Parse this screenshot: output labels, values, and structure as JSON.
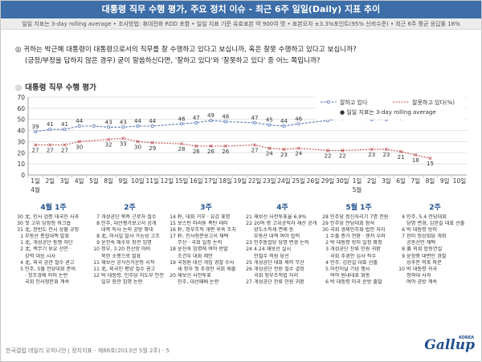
{
  "header": {
    "title": "대통령 직무 수행 평가, 주요 정치 이슈 - 최근 6주 일일(Daily) 지표 추이",
    "subtitle": "일일 지표는 3-day rolling average  •  조사방법: 휴대전화 RDD 포함  •  일일 지표 기준 유효표본 약 900여 명  •  표본오차 ±3.3%포인트(95% 신뢰수준)  •  최근 6주 평균 응답률 18%"
  },
  "question": {
    "line1": "◎ 귀하는 박근혜 대통령이 대통령으로서의 직무를 잘 수행하고 있다고 보십니까, 혹은 잘못 수행하고 있다고 보십니까?",
    "line2": "(긍정/부정을 답하지 않은 경우) 굳이 말씀하신다면, '잘하고 있다'와 '잘못하고 있다' 중 어느 쪽입니까?"
  },
  "section_title": "대통령 직무 수행 평가",
  "chart_data": {
    "type": "line",
    "ylim": [
      0,
      70
    ],
    "yticks": [
      0,
      10,
      20,
      30,
      40,
      50,
      60,
      70
    ],
    "x": [
      "1일",
      "2일",
      "3일",
      "4일",
      "5일",
      "8일",
      "9일",
      "10일",
      "11일",
      "12일",
      "15일",
      "16일",
      "17일",
      "18일",
      "19일",
      "22일",
      "23일",
      "24일",
      "25일",
      "26일",
      "29일",
      "30일",
      "1일",
      "2일",
      "3일",
      "6일",
      "7일",
      "8일",
      "9일",
      "10일"
    ],
    "months": [
      {
        "label": "4월",
        "index": 0
      },
      {
        "label": "5월",
        "index": 22
      }
    ],
    "series": [
      {
        "name": "잘하고 있다",
        "color": "#5b7bb8",
        "values": [
          39,
          41,
          41,
          44,
          44,
          43,
          43,
          44,
          44,
          null,
          46,
          47,
          49,
          48,
          null,
          47,
          45,
          44,
          46,
          null,
          49,
          51,
          null,
          50,
          50,
          51,
          52,
          55,
          58,
          null
        ]
      },
      {
        "name": "잘못하고 있다(%)",
        "color": "#c0504d",
        "values": [
          27,
          27,
          27,
          30,
          null,
          32,
          33,
          30,
          29,
          null,
          28,
          26,
          26,
          26,
          null,
          27,
          24,
          23,
          24,
          null,
          22,
          22,
          null,
          23,
          23,
          21,
          18,
          15,
          null,
          null
        ]
      }
    ],
    "data_labels": {
      "approve": [
        "39",
        "41",
        "41",
        "44",
        "",
        "43",
        "43",
        "44",
        "44",
        "",
        "46",
        "47",
        "49",
        "48",
        "",
        "47",
        "45",
        "44",
        "46",
        "",
        "49",
        "51",
        "",
        "50",
        "50",
        "51",
        "52",
        "55",
        "58",
        ""
      ],
      "disapprove": [
        "27",
        "27",
        "27",
        "30",
        "",
        "32",
        "33",
        "30",
        "29",
        "",
        "28",
        "26",
        "26",
        "26",
        "",
        "27",
        "24",
        "23",
        "24",
        "",
        "22",
        "22",
        "",
        "23",
        "23",
        "21",
        "18",
        "15",
        "",
        ""
      ]
    },
    "legend_note": "일일 지표는 3-day rolling average",
    "legend_position": "top-right",
    "grid": true
  },
  "weeks": [
    {
      "label": "4월 1주",
      "items": [
        {
          "d": "30",
          "t": "北, 인사 검증 대국민 사과"
        },
        {
          "d": "30",
          "t": "첫 고위 당정청 워크숍"
        },
        {
          "d": "31",
          "t": "北, 한반도 전시 상황 규정"
        },
        {
          "d": "1",
          "t": "부동산 종합대책 발표"
        },
        {
          "d": "1",
          "t": "北, 개성공단 통행 차단"
        },
        {
          "d": "2",
          "t": "北, 핵무기 보유 선언 ·"
        },
        {
          "d": "",
          "t": "강력 대응 시사"
        },
        {
          "d": "4",
          "t": "北, 외국 공관 철수 권고"
        },
        {
          "d": "5",
          "t": "민주, 5월 전당대회 준비"
        },
        {
          "d": "",
          "t": "· 창조경제 의미 논란"
        },
        {
          "d": "",
          "t": "국회 인사청문회 계속"
        }
      ]
    },
    {
      "label": "2주",
      "items": [
        {
          "d": "7",
          "t": "개성공단 북측 근로자 철수"
        },
        {
          "d": "8",
          "t": "민주, 대선평가보고서 공개"
        },
        {
          "d": "",
          "t": "대북 특사 논의 공방 확대"
        },
        {
          "d": "8",
          "t": "北, 미사일 발사 가능성 고조"
        },
        {
          "d": "9",
          "t": "윤진숙 해수부 장관 임명"
        },
        {
          "d": "10",
          "t": "정부, 3.20 전산망 마비"
        },
        {
          "d": "",
          "t": "북한 소행으로 발표"
        },
        {
          "d": "11",
          "t": "재보선 공식선거운동 시작"
        },
        {
          "d": "11",
          "t": "北, 외국인 평양 철수 권고"
        },
        {
          "d": "12",
          "t": "박 대통령, 민주당 지도부 만찬"
        },
        {
          "d": "",
          "t": "일부 장관 임명 논란"
        }
      ]
    },
    {
      "label": "3주",
      "items": [
        {
          "d": "14",
          "t": "朴, 대화 거부 · 유감 표명"
        },
        {
          "d": "15",
          "t": "보스턴 마라톤 폭탄 테러"
        },
        {
          "d": "16",
          "t": "朴, 정부조직 개편 후속 조치"
        },
        {
          "d": "17",
          "t": "朴, 인사청문보고서 채택"
        },
        {
          "d": "",
          "t": "무산 · 국회 일정 논의"
        },
        {
          "d": "18",
          "t": "윤진숙 임명에 여야 반발"
        },
        {
          "d": "",
          "t": "조건부 대화 제안"
        },
        {
          "d": "19",
          "t": "국정원 대선 개입 경찰 수사"
        },
        {
          "d": "",
          "t": "새 정부 첫 추경안 국회 제출"
        },
        {
          "d": "20",
          "t": "재보선 사전투표"
        },
        {
          "d": "",
          "t": "민주, 대선패배 논란"
        }
      ]
    },
    {
      "label": "4주",
      "items": [
        {
          "d": "21",
          "t": "재보선 사전투표율 6.9%"
        },
        {
          "d": "22",
          "t": "20여 명 고위공직자 재산 공개"
        },
        {
          "d": "",
          "t": "양도소득세 면제 등"
        },
        {
          "d": "",
          "t": "부동산 대책 여야 합의"
        },
        {
          "d": "23",
          "t": "민주통합당 당명 변경 논의"
        },
        {
          "d": "24",
          "t": "4.24 재보선 실시"
        },
        {
          "d": "",
          "t": "안철수 의원 당선"
        },
        {
          "d": "25",
          "t": "개성공단 대화 제의 무산"
        },
        {
          "d": "26",
          "t": "개성공단 전원 철수 결정"
        },
        {
          "d": "",
          "t": "국회 정부조직법 처리"
        },
        {
          "d": "27",
          "t": "개성공단 잔류 인원 귀환"
        }
      ]
    },
    {
      "label": "5월 1주",
      "items": [
        {
          "d": "28",
          "t": "민주당 정신차리기 7명 전원"
        },
        {
          "d": "29",
          "t": "민주당 전당대회 참석"
        },
        {
          "d": "30",
          "t": "국회 경제민주화 법안 처리"
        },
        {
          "d": "1",
          "t": "수출 증가 전환 · 엔저 우려"
        },
        {
          "d": "2",
          "t": "박 대통령 방미 일정 확정"
        },
        {
          "d": "3",
          "t": "개성공단 잔류 인원 귀환"
        },
        {
          "d": "",
          "t": "국회 추경안 심사 착수"
        },
        {
          "d": "4",
          "t": "민주, 김한길 대표 선출"
        },
        {
          "d": "5",
          "t": "어린이날 기념 행사"
        },
        {
          "d": "",
          "t": "여야 원내대표 회동"
        },
        {
          "d": "6",
          "t": "박 대통령 미국 순방 출발"
        }
      ]
    },
    {
      "label": "2주",
      "items": [
        {
          "d": "4",
          "t": "민주, 5.4 전당대회"
        },
        {
          "d": "",
          "t": "당명 변경, 김한길 대표 선출"
        },
        {
          "d": "6",
          "t": "박 대통령 방미"
        },
        {
          "d": "7",
          "t": "한미 정상회담 개최"
        },
        {
          "d": "",
          "t": "공동선언 채택"
        },
        {
          "d": "8",
          "t": "美 의회 합동연설"
        },
        {
          "d": "9",
          "t": "윤창중 대변인 경질"
        },
        {
          "d": "",
          "t": "성추문 의혹 파문"
        },
        {
          "d": "10",
          "t": "박 대통령 귀국"
        },
        {
          "d": "",
          "t": "청와대 사과"
        },
        {
          "d": "",
          "t": "여야 공방 계속"
        }
      ]
    }
  ],
  "footer": {
    "source": "한국갤럽 데일리 오피니언 | 정치지표 - 제66호(2013년 5월 2주) - 5",
    "logo": "Gallup",
    "logo_sup": "KOREA"
  }
}
